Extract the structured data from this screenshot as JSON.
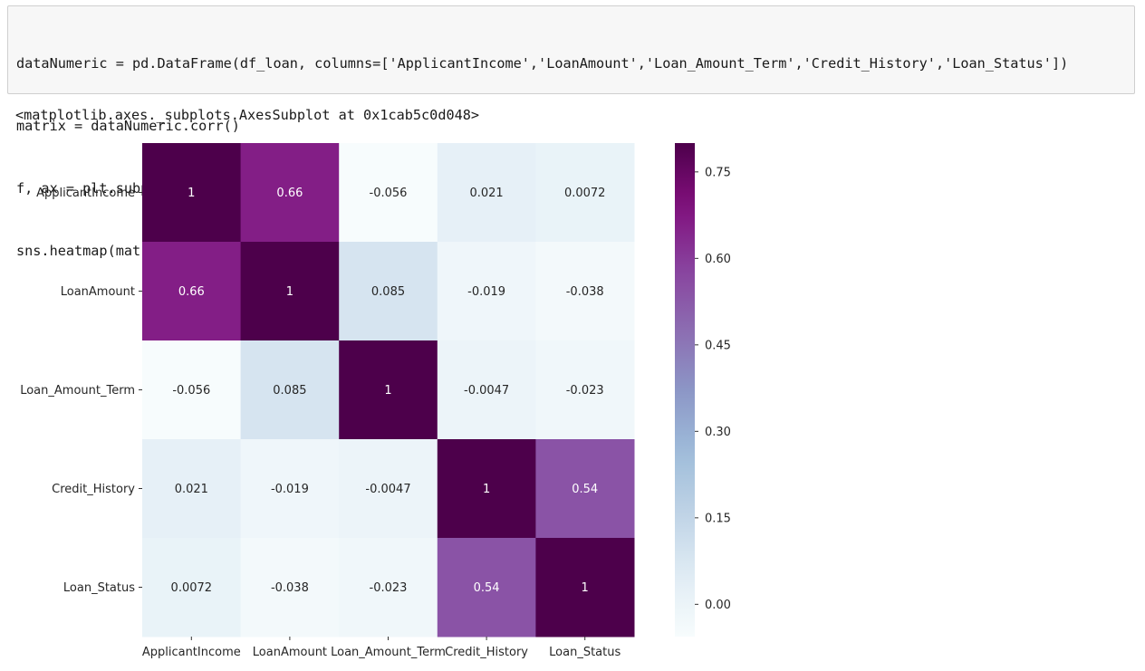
{
  "notebook": {
    "code_lines": [
      "dataNumeric = pd.DataFrame(df_loan, columns=['ApplicantIncome','LoanAmount','Loan_Amount_Term','Credit_History','Loan_Status'])",
      "matrix = dataNumeric.corr()",
      "f, ax = plt.subplots(figsize=(12,8))",
      "sns.heatmap(matrix,vmax=.8,square=True,cmap='BuPu', annot = True)"
    ],
    "output_text": "<matplotlib.axes._subplots.AxesSubplot at 0x1cab5c0d048>"
  },
  "chart_data": {
    "type": "heatmap",
    "title": "",
    "xlabel": "",
    "ylabel": "",
    "rows": [
      "ApplicantIncome",
      "LoanAmount",
      "Loan_Amount_Term",
      "Credit_History",
      "Loan_Status"
    ],
    "columns": [
      "ApplicantIncome",
      "LoanAmount",
      "Loan_Amount_Term",
      "Credit_History",
      "Loan_Status"
    ],
    "values": [
      [
        1,
        0.66,
        -0.056,
        0.021,
        0.0072
      ],
      [
        0.66,
        1,
        0.085,
        -0.019,
        -0.038
      ],
      [
        -0.056,
        0.085,
        1,
        -0.0047,
        -0.023
      ],
      [
        0.021,
        -0.019,
        -0.0047,
        1,
        0.54
      ],
      [
        0.0072,
        -0.038,
        -0.023,
        0.54,
        1
      ]
    ],
    "annotations": [
      [
        "1",
        "0.66",
        "-0.056",
        "0.021",
        "0.0072"
      ],
      [
        "0.66",
        "1",
        "0.085",
        "-0.019",
        "-0.038"
      ],
      [
        "-0.056",
        "0.085",
        "1",
        "-0.0047",
        "-0.023"
      ],
      [
        "0.021",
        "-0.019",
        "-0.0047",
        "1",
        "0.54"
      ],
      [
        "0.0072",
        "-0.038",
        "-0.023",
        "0.54",
        "1"
      ]
    ],
    "colormap": "BuPu",
    "vmin": -0.056,
    "vmax": 0.8,
    "colorbar_ticks": [
      0.0,
      0.15,
      0.3,
      0.45,
      0.6,
      0.75
    ],
    "colorbar_tick_labels": [
      "0.00",
      "0.15",
      "0.30",
      "0.45",
      "0.60",
      "0.75"
    ],
    "colorbar_position": "right",
    "grid": false
  }
}
